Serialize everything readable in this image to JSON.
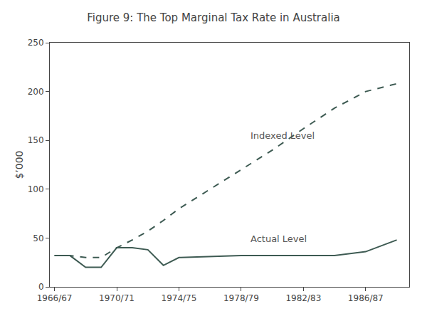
{
  "chart_data": {
    "type": "line",
    "title": "Figure 9: The Top Marginal Tax Rate in Australia",
    "ylabel": "$’000",
    "x": [
      0,
      1,
      2,
      3,
      4,
      5,
      6,
      7,
      8,
      10,
      12,
      14,
      16,
      18,
      20,
      22
    ],
    "series": [
      {
        "color": "#3d5a52",
        "line_style": "solid",
        "values": [
          32,
          32,
          20,
          20,
          40,
          40,
          38,
          22,
          30,
          31,
          32,
          32,
          32,
          32,
          36,
          48
        ]
      },
      {
        "color": "#3d5a52",
        "line_style": "dashed",
        "values": [
          32,
          32,
          30,
          30,
          40,
          48,
          57,
          68,
          80,
          100,
          120,
          140,
          162,
          183,
          200,
          208
        ]
      }
    ],
    "annotations": [
      {
        "text": "Indexed Level",
        "x": 12.5,
        "y": 148
      },
      {
        "text": "Actual Level",
        "x": 12.5,
        "y": 42
      }
    ],
    "xlim": [
      -0.3,
      22.8
    ],
    "xticks": [
      {
        "value": 0,
        "label": "1966/67"
      },
      {
        "value": 4,
        "label": "1970/71"
      },
      {
        "value": 8,
        "label": "1974/75"
      },
      {
        "value": 12,
        "label": "1978/79"
      },
      {
        "value": 16,
        "label": "1982/83"
      },
      {
        "value": 20,
        "label": "1986/87"
      }
    ],
    "ylim": [
      0,
      250
    ],
    "yticks": [
      0,
      50,
      100,
      150,
      200,
      250
    ],
    "grid": false
  }
}
